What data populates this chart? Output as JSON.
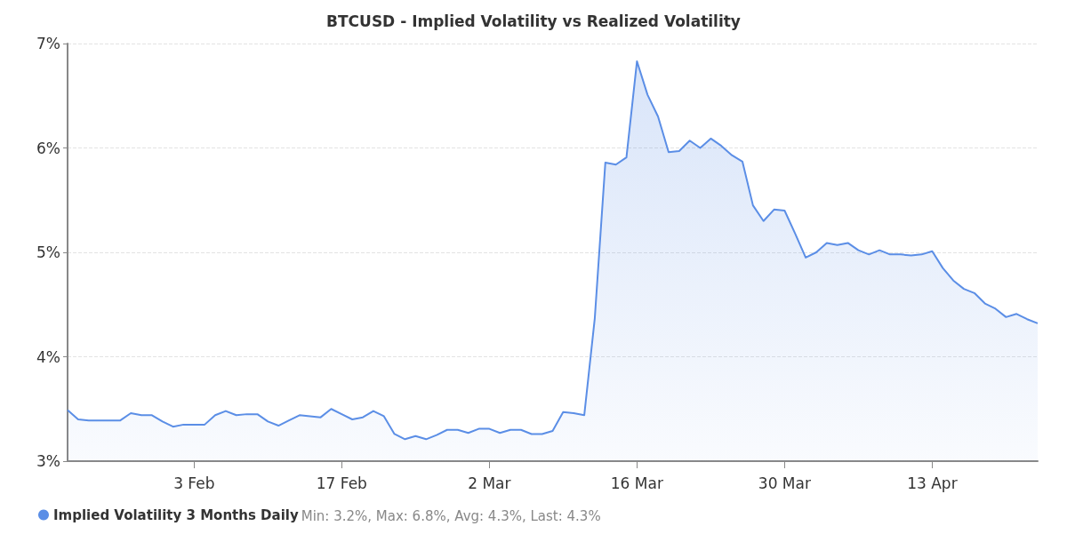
{
  "chart_data": {
    "type": "area",
    "title": "BTCUSD - Implied Volatility vs Realized Volatility",
    "x": [
      "--01-22",
      "--01-23",
      "--01-24",
      "--01-25",
      "--01-26",
      "--01-27",
      "--01-28",
      "--01-29",
      "--01-30",
      "--01-31",
      "--02-01",
      "--02-02",
      "--02-03",
      "--02-04",
      "--02-05",
      "--02-06",
      "--02-07",
      "--02-08",
      "--02-09",
      "--02-10",
      "--02-11",
      "--02-12",
      "--02-13",
      "--02-14",
      "--02-15",
      "--02-16",
      "--02-17",
      "--02-18",
      "--02-19",
      "--02-20",
      "--02-21",
      "--02-22",
      "--02-23",
      "--02-24",
      "--02-25",
      "--02-26",
      "--02-27",
      "--02-28",
      "--02-29",
      "--03-01",
      "--03-02",
      "--03-03",
      "--03-04",
      "--03-05",
      "--03-06",
      "--03-07",
      "--03-08",
      "--03-09",
      "--03-10",
      "--03-11",
      "--03-12",
      "--03-13",
      "--03-14",
      "--03-15",
      "--03-16",
      "--03-17",
      "--03-18",
      "--03-19",
      "--03-20",
      "--03-21",
      "--03-22",
      "--03-23",
      "--03-24",
      "--03-25",
      "--03-26",
      "--03-27",
      "--03-28",
      "--03-29",
      "--03-30",
      "--03-31",
      "--04-01",
      "--04-02",
      "--04-03",
      "--04-04",
      "--04-05",
      "--04-06",
      "--04-07",
      "--04-08",
      "--04-09",
      "--04-10",
      "--04-11",
      "--04-12",
      "--04-13",
      "--04-14",
      "--04-15",
      "--04-16",
      "--04-17",
      "--04-18",
      "--04-19",
      "--04-20",
      "--04-21",
      "--04-22",
      "--04-23"
    ],
    "series": [
      {
        "name": "Implied Volatility 3 Months Daily",
        "color": "#5b8ee6",
        "values": [
          3.49,
          3.4,
          3.39,
          3.39,
          3.39,
          3.39,
          3.46,
          3.44,
          3.44,
          3.38,
          3.33,
          3.35,
          3.35,
          3.35,
          3.44,
          3.48,
          3.44,
          3.45,
          3.45,
          3.38,
          3.34,
          3.39,
          3.44,
          3.43,
          3.42,
          3.5,
          3.45,
          3.4,
          3.42,
          3.48,
          3.43,
          3.26,
          3.21,
          3.24,
          3.21,
          3.25,
          3.3,
          3.3,
          3.27,
          3.31,
          3.31,
          3.27,
          3.3,
          3.3,
          3.26,
          3.26,
          3.29,
          3.47,
          3.46,
          3.44,
          4.37,
          5.86,
          5.84,
          5.91,
          6.83,
          6.51,
          6.3,
          5.96,
          5.97,
          6.07,
          6.0,
          6.09,
          6.02,
          5.93,
          5.87,
          5.45,
          5.3,
          5.41,
          5.4,
          5.18,
          4.95,
          5.0,
          5.09,
          5.07,
          5.09,
          5.02,
          4.98,
          5.02,
          4.98,
          4.98,
          4.97,
          4.98,
          5.01,
          4.85,
          4.73,
          4.65,
          4.61,
          4.51,
          4.46,
          4.38,
          4.41,
          4.36,
          4.32
        ]
      }
    ],
    "xlim": [
      "--01-22",
      "--04-23"
    ],
    "xticks": [
      {
        "value": "--02-03",
        "label": "3 Feb"
      },
      {
        "value": "--02-17",
        "label": "17 Feb"
      },
      {
        "value": "--03-02",
        "label": "2 Mar"
      },
      {
        "value": "--03-16",
        "label": "16 Mar"
      },
      {
        "value": "--03-30",
        "label": "30 Mar"
      },
      {
        "value": "--04-13",
        "label": "13 Apr"
      }
    ],
    "ylim": [
      3,
      7
    ],
    "yticks": [
      {
        "value": 3,
        "label": "3%"
      },
      {
        "value": 4,
        "label": "4%"
      },
      {
        "value": 5,
        "label": "5%"
      },
      {
        "value": 6,
        "label": "6%"
      },
      {
        "value": 7,
        "label": "7%"
      }
    ],
    "grid": "y",
    "legend": "bottom left",
    "marker": "none",
    "line_style": "solid",
    "annotations": [
      "Min: 3.2%, Max: 6.8%, Avg: 4.3%, Last: 4.3%"
    ]
  }
}
